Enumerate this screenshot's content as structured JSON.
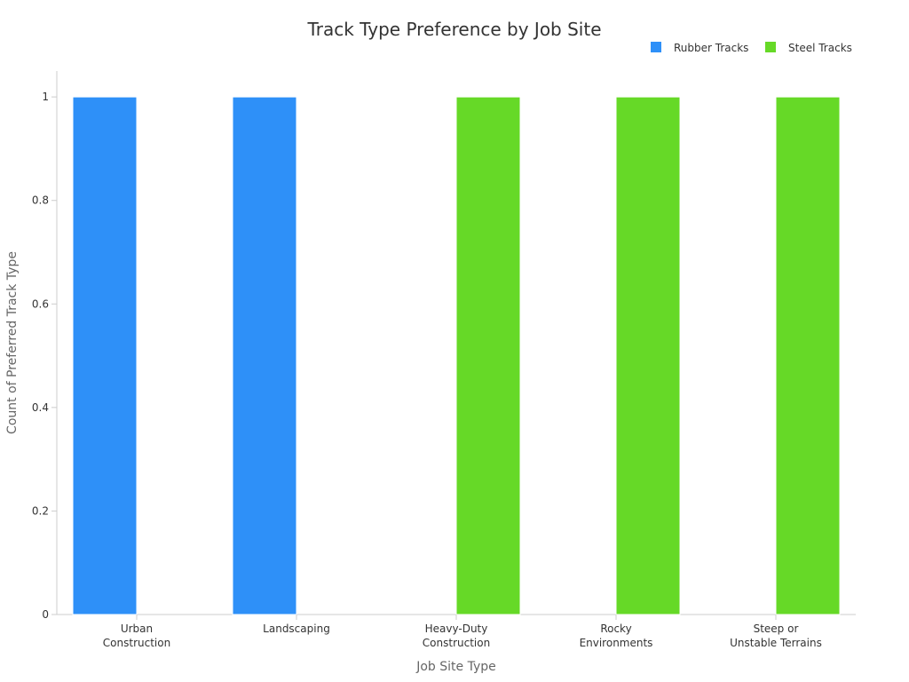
{
  "chart_data": {
    "type": "bar",
    "title": "Track Type Preference by Job Site",
    "xlabel": "Job Site Type",
    "ylabel": "Count of Preferred Track Type",
    "categories": [
      [
        "Urban",
        "Construction"
      ],
      [
        "Landscaping"
      ],
      [
        "Heavy-Duty",
        "Construction"
      ],
      [
        "Rocky",
        "Environments"
      ],
      [
        "Steep or",
        "Unstable Terrains"
      ]
    ],
    "series": [
      {
        "name": "Rubber Tracks",
        "color": "#2e90f8",
        "values": [
          1,
          1,
          0,
          0,
          0
        ]
      },
      {
        "name": "Steel Tracks",
        "color": "#66d927",
        "values": [
          0,
          0,
          1,
          1,
          1
        ]
      }
    ],
    "ylim": [
      0,
      1.05
    ],
    "yticks": [
      "0",
      "0.2",
      "0.4",
      "0.6",
      "0.8",
      "1"
    ],
    "grid": false,
    "legend_position": "top-right"
  }
}
